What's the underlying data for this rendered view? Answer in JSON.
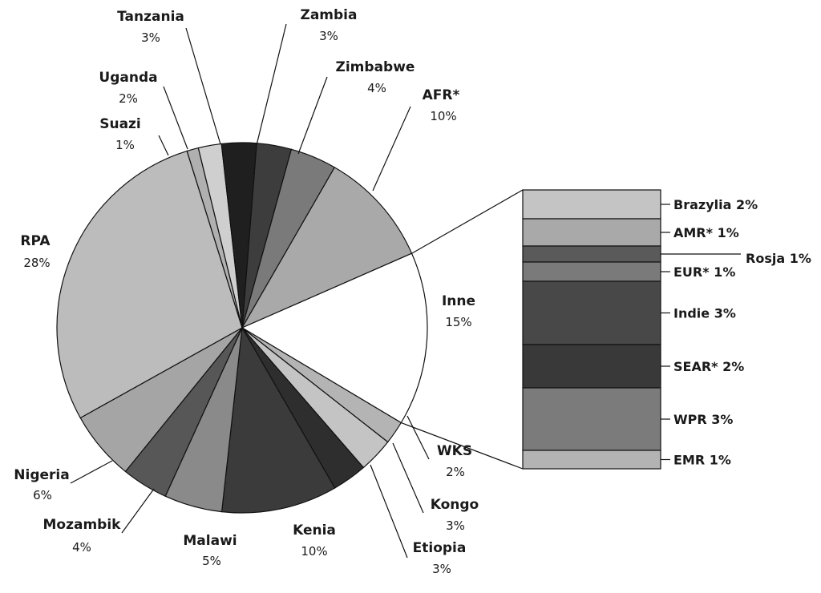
{
  "chart_data": [
    {
      "type": "pie",
      "title": "",
      "slices": [
        {
          "label": "Zambia",
          "value_label": "3%",
          "value": 3,
          "color": "#3d3d3d"
        },
        {
          "label": "Zimbabwe",
          "value_label": "4%",
          "value": 4,
          "color": "#7a7a7a"
        },
        {
          "label": "AFR*",
          "value_label": "10%",
          "value": 10,
          "color": "#a9a9a9"
        },
        {
          "label": "Inne",
          "value_label": "15%",
          "value": 15,
          "color": "#ffffff"
        },
        {
          "label": "WKS",
          "value_label": "2%",
          "value": 2,
          "color": "#b4b4b4"
        },
        {
          "label": "Kongo",
          "value_label": "3%",
          "value": 3,
          "color": "#c4c4c4"
        },
        {
          "label": "Etiopia",
          "value_label": "3%",
          "value": 3,
          "color": "#2e2e2e"
        },
        {
          "label": "Kenia",
          "value_label": "10%",
          "value": 10,
          "color": "#3b3b3b"
        },
        {
          "label": "Malawi",
          "value_label": "5%",
          "value": 5,
          "color": "#8a8a8a"
        },
        {
          "label": "Mozambik",
          "value_label": "4%",
          "value": 4,
          "color": "#575757"
        },
        {
          "label": "Nigeria",
          "value_label": "6%",
          "value": 6,
          "color": "#a5a5a5"
        },
        {
          "label": "RPA",
          "value_label": "28%",
          "value": 28,
          "color": "#bcbcbc"
        },
        {
          "label": "Suazi",
          "value_label": "1%",
          "value": 1,
          "color": "#b0b0b0"
        },
        {
          "label": "Uganda",
          "value_label": "2%",
          "value": 2,
          "color": "#cfcfcf"
        },
        {
          "label": "Tanzania",
          "value_label": "3%",
          "value": 3,
          "color": "#1f1f1f"
        }
      ]
    },
    {
      "type": "bar",
      "stacked": true,
      "breakdown_of": "Inne",
      "segments": [
        {
          "label": "Brazylia 2%",
          "value": 2,
          "color": "#c4c4c4"
        },
        {
          "label": "AMR* 1%",
          "value": 1,
          "color": "#a9a9a9"
        },
        {
          "label": "Rosja 1%",
          "value": 1,
          "color": "#5a5a5a"
        },
        {
          "label": "EUR* 1%",
          "value": 1,
          "color": "#7a7a7a"
        },
        {
          "label": "Indie 3%",
          "value": 3,
          "color": "#484848"
        },
        {
          "label": "SEAR* 2%",
          "value": 2,
          "color": "#393939"
        },
        {
          "label": "WPR 3%",
          "value": 3,
          "color": "#7b7b7b"
        },
        {
          "label": "EMR 1%",
          "value": 1,
          "color": "#b3b3b3"
        }
      ]
    }
  ]
}
